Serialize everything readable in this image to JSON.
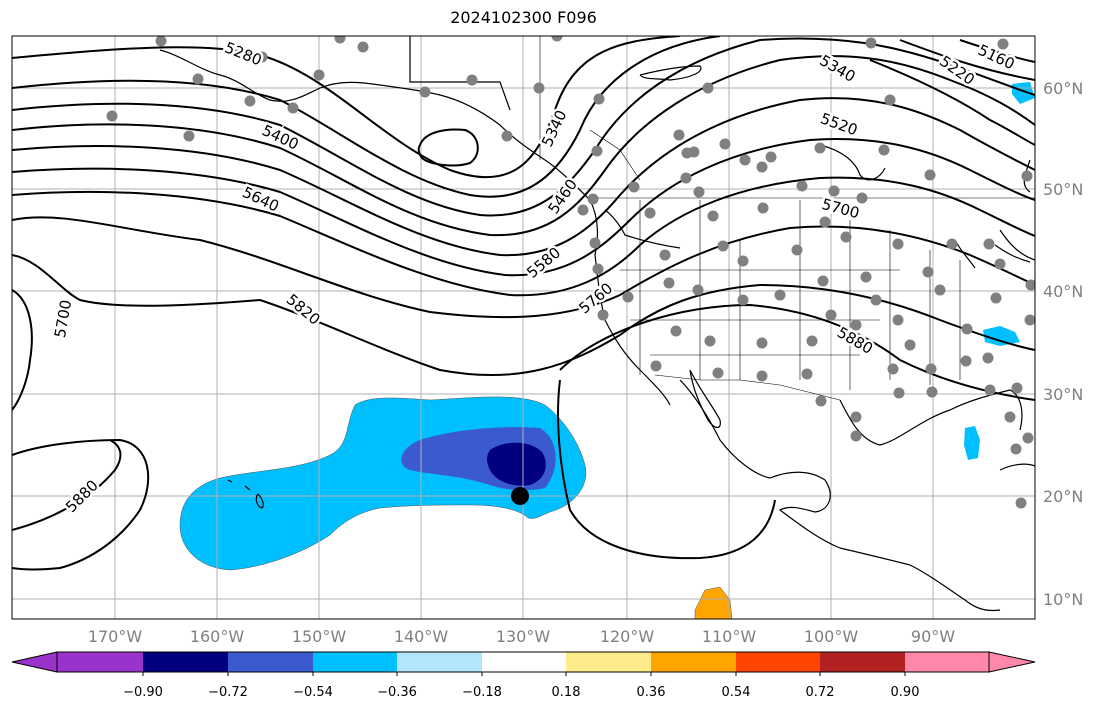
{
  "title": "2024102300 F096",
  "map": {
    "longitude_labels": [
      "170°W",
      "160°W",
      "150°W",
      "140°W",
      "130°W",
      "120°W",
      "110°W",
      "100°W",
      "90°W"
    ],
    "latitude_labels": [
      "60°N",
      "50°N",
      "40°N",
      "30°N",
      "20°N",
      "10°N"
    ],
    "contour_labels": [
      "5160",
      "5220",
      "5280",
      "5340",
      "5340",
      "5400",
      "5460",
      "5520",
      "5580",
      "5640",
      "5700",
      "5700",
      "5760",
      "5820",
      "5880",
      "5880"
    ],
    "colors": {
      "grid": "#b0b0b0",
      "contour": "#000000",
      "station": "#808080",
      "marker": "#000000"
    }
  },
  "colorbar": {
    "ticks": [
      "−0.90",
      "−0.72",
      "−0.54",
      "−0.36",
      "−0.18",
      "0.18",
      "0.36",
      "0.54",
      "0.72",
      "0.90"
    ],
    "colors": [
      "#9933cc",
      "#000080",
      "#3a5acd",
      "#00bfff",
      "#b3e5fc",
      "#ffffff",
      "#ffeb8c",
      "#ffa500",
      "#ff4500",
      "#b22222",
      "#ff88aa"
    ]
  }
}
